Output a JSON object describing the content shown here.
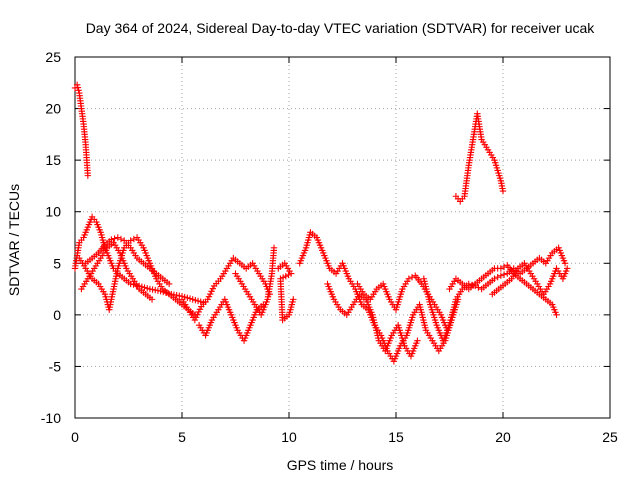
{
  "chart_data": {
    "type": "scatter",
    "title": "Day 364 of 2024, Sidereal Day-to-day VTEC variation (SDTVAR) for receiver ucak",
    "xlabel": "GPS time / hours",
    "ylabel": "SDTVAR / TECUs",
    "xlim": [
      0,
      25
    ],
    "ylim": [
      -10,
      25
    ],
    "xticks": [
      0,
      5,
      10,
      15,
      20,
      25
    ],
    "yticks": [
      -10,
      -5,
      0,
      5,
      10,
      15,
      20,
      25
    ],
    "xtick_labels": [
      "0",
      "5",
      "10",
      "15",
      "20",
      "25"
    ],
    "ytick_labels": [
      "-10",
      "-5",
      "0",
      "5",
      "10",
      "15",
      "20",
      "25"
    ],
    "grid": true,
    "marker": "+",
    "marker_color": "#ff0000",
    "series": [
      {
        "name": "SDTVAR",
        "segments": [
          [
            [
              0.0,
              22.0
            ],
            [
              0.1,
              22.3
            ],
            [
              0.2,
              21.5
            ],
            [
              0.3,
              20.0
            ],
            [
              0.4,
              18.5
            ],
            [
              0.5,
              16.5
            ],
            [
              0.55,
              15.0
            ],
            [
              0.6,
              13.5
            ]
          ],
          [
            [
              0.0,
              4.5
            ],
            [
              0.2,
              7.0
            ],
            [
              0.4,
              7.5
            ],
            [
              0.6,
              8.5
            ],
            [
              0.8,
              9.5
            ],
            [
              1.0,
              9.0
            ],
            [
              1.2,
              8.0
            ],
            [
              1.4,
              6.5
            ],
            [
              1.6,
              5.5
            ],
            [
              1.8,
              4.5
            ],
            [
              2.0,
              4.0
            ],
            [
              2.3,
              3.5
            ],
            [
              2.6,
              3.0
            ],
            [
              3.0,
              2.8
            ],
            [
              3.5,
              2.5
            ],
            [
              4.0,
              2.3
            ],
            [
              4.5,
              2.0
            ],
            [
              5.0,
              1.8
            ],
            [
              5.5,
              1.5
            ],
            [
              6.0,
              1.2
            ]
          ],
          [
            [
              0.2,
              5.5
            ],
            [
              0.5,
              4.5
            ],
            [
              0.8,
              3.5
            ],
            [
              1.1,
              3.0
            ],
            [
              1.4,
              2.0
            ],
            [
              1.6,
              0.5
            ],
            [
              1.8,
              2.5
            ],
            [
              2.0,
              4.5
            ],
            [
              2.3,
              6.5
            ],
            [
              2.6,
              7.2
            ],
            [
              2.9,
              7.5
            ],
            [
              3.2,
              6.5
            ],
            [
              3.5,
              5.0
            ],
            [
              3.8,
              3.5
            ],
            [
              4.1,
              2.5
            ],
            [
              4.4,
              2.0
            ],
            [
              4.7,
              1.5
            ],
            [
              5.0,
              1.0
            ],
            [
              5.3,
              0.5
            ],
            [
              5.6,
              0.0
            ]
          ],
          [
            [
              0.5,
              5.0
            ],
            [
              0.8,
              5.5
            ],
            [
              1.1,
              6.0
            ],
            [
              1.4,
              6.8
            ],
            [
              1.7,
              7.3
            ],
            [
              2.0,
              7.5
            ],
            [
              2.3,
              7.2
            ],
            [
              2.6,
              6.5
            ],
            [
              2.9,
              5.5
            ],
            [
              3.2,
              5.0
            ],
            [
              3.5,
              4.5
            ],
            [
              3.8,
              4.0
            ],
            [
              4.1,
              3.5
            ],
            [
              4.4,
              3.0
            ]
          ],
          [
            [
              0.3,
              2.5
            ],
            [
              0.6,
              3.5
            ],
            [
              0.9,
              4.5
            ],
            [
              1.2,
              5.5
            ],
            [
              1.5,
              6.5
            ],
            [
              1.8,
              7.0
            ],
            [
              2.1,
              6.0
            ],
            [
              2.4,
              4.5
            ],
            [
              2.7,
              3.5
            ],
            [
              3.0,
              2.5
            ],
            [
              3.3,
              2.0
            ],
            [
              3.6,
              1.5
            ]
          ],
          [
            [
              5.0,
              1.5
            ],
            [
              5.3,
              0.5
            ],
            [
              5.6,
              -0.5
            ],
            [
              5.9,
              0.8
            ],
            [
              6.2,
              1.5
            ],
            [
              6.5,
              2.8
            ],
            [
              6.8,
              3.5
            ],
            [
              7.1,
              4.5
            ],
            [
              7.4,
              5.5
            ],
            [
              7.7,
              5.0
            ],
            [
              8.0,
              4.5
            ],
            [
              8.3,
              5.0
            ],
            [
              8.6,
              4.0
            ],
            [
              8.9,
              3.0
            ],
            [
              9.1,
              2.0
            ]
          ],
          [
            [
              5.8,
              -1.0
            ],
            [
              6.1,
              -2.0
            ],
            [
              6.4,
              -0.5
            ],
            [
              6.7,
              0.5
            ],
            [
              7.0,
              1.5
            ],
            [
              7.3,
              0.0
            ],
            [
              7.6,
              -1.5
            ],
            [
              7.9,
              -2.5
            ],
            [
              8.2,
              -1.0
            ],
            [
              8.5,
              0.5
            ],
            [
              8.8,
              1.0
            ]
          ],
          [
            [
              7.5,
              4.0
            ],
            [
              7.8,
              3.0
            ],
            [
              8.1,
              2.0
            ],
            [
              8.4,
              1.0
            ],
            [
              8.7,
              0.0
            ],
            [
              9.0,
              1.5
            ],
            [
              9.2,
              4.0
            ],
            [
              9.3,
              6.5
            ]
          ],
          [
            [
              9.5,
              4.5
            ],
            [
              9.8,
              5.0
            ],
            [
              10.1,
              4.0
            ],
            [
              9.6,
              3.5
            ],
            [
              9.7,
              -0.5
            ],
            [
              10.0,
              0.0
            ],
            [
              10.2,
              1.5
            ]
          ],
          [
            [
              10.5,
              5.0
            ],
            [
              10.8,
              6.5
            ],
            [
              11.0,
              8.0
            ],
            [
              11.3,
              7.5
            ],
            [
              11.6,
              6.0
            ],
            [
              11.9,
              4.5
            ],
            [
              12.2,
              4.0
            ],
            [
              12.5,
              5.0
            ],
            [
              12.8,
              3.5
            ],
            [
              13.1,
              2.5
            ],
            [
              13.4,
              1.0
            ],
            [
              13.7,
              0.5
            ],
            [
              14.0,
              -1.0
            ],
            [
              14.3,
              -2.0
            ],
            [
              14.6,
              -3.5
            ],
            [
              14.9,
              -4.5
            ],
            [
              15.2,
              -3.0
            ],
            [
              15.5,
              -2.0
            ],
            [
              15.8,
              0.0
            ],
            [
              16.1,
              1.0
            ],
            [
              16.4,
              -1.5
            ],
            [
              16.7,
              -2.5
            ],
            [
              17.0,
              -3.5
            ],
            [
              17.3,
              -2.5
            ],
            [
              17.6,
              -0.5
            ],
            [
              17.9,
              1.5
            ]
          ],
          [
            [
              11.8,
              3.0
            ],
            [
              12.1,
              1.5
            ],
            [
              12.4,
              0.5
            ],
            [
              12.7,
              0.0
            ],
            [
              13.0,
              1.0
            ],
            [
              13.3,
              2.0
            ],
            [
              13.6,
              1.5
            ],
            [
              13.9,
              0.0
            ],
            [
              14.2,
              -2.5
            ],
            [
              14.5,
              -3.5
            ],
            [
              14.8,
              -2.0
            ],
            [
              15.1,
              -1.0
            ],
            [
              15.4,
              -3.0
            ],
            [
              15.7,
              -4.0
            ],
            [
              16.0,
              -2.5
            ]
          ],
          [
            [
              13.2,
              3.0
            ],
            [
              13.5,
              2.0
            ],
            [
              13.8,
              1.5
            ],
            [
              14.1,
              2.5
            ],
            [
              14.4,
              3.0
            ],
            [
              14.7,
              1.5
            ],
            [
              15.0,
              0.5
            ],
            [
              15.3,
              2.5
            ],
            [
              15.6,
              3.5
            ],
            [
              15.9,
              3.8
            ],
            [
              16.2,
              3.0
            ],
            [
              16.5,
              2.0
            ],
            [
              16.8,
              1.0
            ],
            [
              17.1,
              0.0
            ],
            [
              17.4,
              -1.5
            ],
            [
              17.7,
              0.5
            ]
          ],
          [
            [
              16.3,
              3.5
            ],
            [
              16.6,
              1.0
            ],
            [
              16.9,
              -1.0
            ],
            [
              17.2,
              -2.5
            ],
            [
              17.5,
              -1.0
            ],
            [
              17.8,
              1.5
            ],
            [
              18.1,
              2.5
            ],
            [
              18.4,
              3.0
            ],
            [
              18.7,
              2.8
            ],
            [
              19.0,
              2.5
            ],
            [
              19.3,
              3.0
            ],
            [
              19.6,
              3.5
            ],
            [
              19.9,
              3.8
            ],
            [
              20.2,
              4.0
            ],
            [
              20.5,
              4.5
            ],
            [
              20.8,
              4.0
            ],
            [
              21.1,
              4.5
            ],
            [
              21.4,
              5.0
            ],
            [
              21.7,
              5.5
            ],
            [
              22.0,
              5.0
            ],
            [
              22.3,
              6.0
            ],
            [
              22.6,
              6.5
            ],
            [
              22.9,
              5.0
            ]
          ],
          [
            [
              17.5,
              2.5
            ],
            [
              17.8,
              3.5
            ],
            [
              18.1,
              3.0
            ],
            [
              18.4,
              2.5
            ],
            [
              18.7,
              3.0
            ],
            [
              19.0,
              3.5
            ],
            [
              19.3,
              4.0
            ],
            [
              19.6,
              4.5
            ],
            [
              19.9,
              4.5
            ],
            [
              20.2,
              4.8
            ],
            [
              20.5,
              4.0
            ],
            [
              20.8,
              3.5
            ],
            [
              21.1,
              3.0
            ],
            [
              21.4,
              2.5
            ],
            [
              21.7,
              2.0
            ],
            [
              22.0,
              1.5
            ],
            [
              22.3,
              1.0
            ],
            [
              22.5,
              0.0
            ]
          ],
          [
            [
              17.8,
              11.5
            ],
            [
              18.0,
              11.0
            ],
            [
              18.2,
              11.5
            ],
            [
              18.4,
              14.5
            ],
            [
              18.6,
              17.0
            ],
            [
              18.8,
              19.5
            ],
            [
              19.0,
              17.0
            ],
            [
              19.3,
              16.0
            ],
            [
              19.6,
              15.0
            ],
            [
              19.9,
              13.0
            ],
            [
              20.0,
              12.0
            ]
          ],
          [
            [
              19.5,
              2.0
            ],
            [
              19.8,
              2.5
            ],
            [
              20.1,
              3.0
            ],
            [
              20.4,
              3.5
            ],
            [
              20.7,
              4.5
            ],
            [
              21.0,
              5.0
            ],
            [
              21.3,
              4.0
            ],
            [
              21.6,
              3.0
            ],
            [
              21.9,
              2.0
            ],
            [
              22.2,
              3.0
            ],
            [
              22.5,
              4.5
            ],
            [
              22.8,
              3.5
            ],
            [
              23.0,
              4.5
            ]
          ]
        ]
      }
    ]
  }
}
